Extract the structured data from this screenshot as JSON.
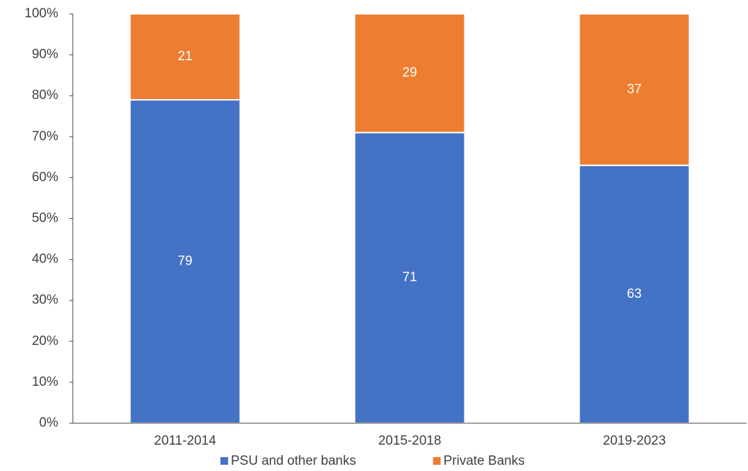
{
  "chart_data": {
    "type": "stacked_bar",
    "categories": [
      "2011-2014",
      "2015-2018",
      "2019-2023"
    ],
    "series": [
      {
        "name": "PSU and other banks",
        "color": "#4472c4",
        "values": [
          79,
          71,
          63
        ]
      },
      {
        "name": "Private Banks",
        "color": "#ed7d31",
        "values": [
          21,
          29,
          37
        ]
      }
    ],
    "ylim": [
      0,
      100
    ],
    "yticks": [
      {
        "value": 0,
        "label": "0%"
      },
      {
        "value": 10,
        "label": "10%"
      },
      {
        "value": 20,
        "label": "20%"
      },
      {
        "value": 30,
        "label": "30%"
      },
      {
        "value": 40,
        "label": "40%"
      },
      {
        "value": 50,
        "label": "50%"
      },
      {
        "value": 60,
        "label": "60%"
      },
      {
        "value": 70,
        "label": "70%"
      },
      {
        "value": 80,
        "label": "80%"
      },
      {
        "value": 90,
        "label": "90%"
      },
      {
        "value": 100,
        "label": "100%"
      }
    ],
    "grid": false,
    "legend": "bottom"
  }
}
